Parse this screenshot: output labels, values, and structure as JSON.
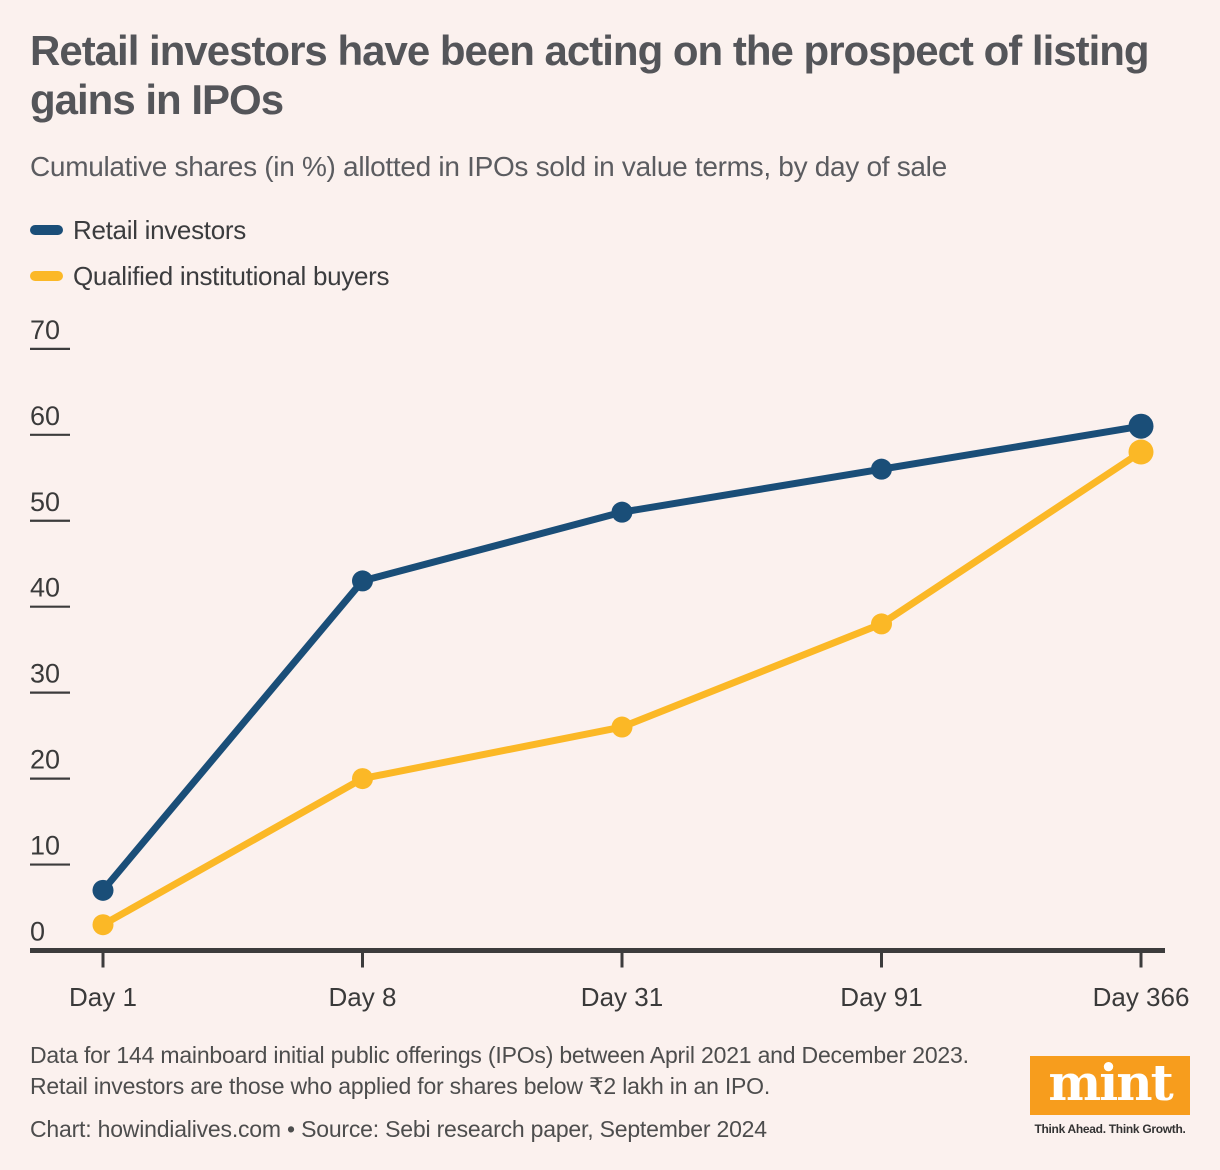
{
  "header": {
    "title_line1": "Retail investors have been acting on the prospect of listing",
    "title_line2": "gains in IPOs",
    "subtitle": "Cumulative shares (in %) allotted in IPOs sold in value terms, by day of sale"
  },
  "legend": [
    {
      "label": "Retail investors",
      "color": "#1a4e78"
    },
    {
      "label": "Qualified institutional buyers",
      "color": "#fbb826"
    }
  ],
  "chart_data": {
    "type": "line",
    "title": "Retail investors have been acting on the prospect of listing gains in IPOs",
    "subtitle": "Cumulative shares (in %) allotted in IPOs sold in value terms, by day of sale",
    "categories": [
      "Day 1",
      "Day 8",
      "Day 31",
      "Day 91",
      "Day 366"
    ],
    "series": [
      {
        "name": "Retail investors",
        "color": "#1a4e78",
        "values": [
          7,
          43,
          51,
          56,
          61
        ]
      },
      {
        "name": "Qualified institutional buyers",
        "color": "#fbb826",
        "values": [
          3,
          20,
          26,
          38,
          58
        ]
      }
    ],
    "xlabel": "",
    "ylabel": "",
    "y_ticks": [
      0,
      10,
      20,
      30,
      40,
      50,
      60,
      70
    ],
    "ylim": [
      0,
      70
    ],
    "grid": "off",
    "legend_position": "top-left",
    "axis_color": "#3c3c3c",
    "tick_label_color": "#3a3a3a"
  },
  "footer": {
    "note_line1": "Data for 144 mainboard initial public offerings (IPOs) between April 2021 and December 2023.",
    "note_line2": "Retail investors are those who applied for shares below ₹2 lakh in an IPO.",
    "credit": "Chart: howindialives.com • Source: Sebi research paper, September 2024",
    "logo_text": "mint",
    "logo_tagline": "Think Ahead. Think Growth.",
    "logo_color": "#f79d1d"
  }
}
